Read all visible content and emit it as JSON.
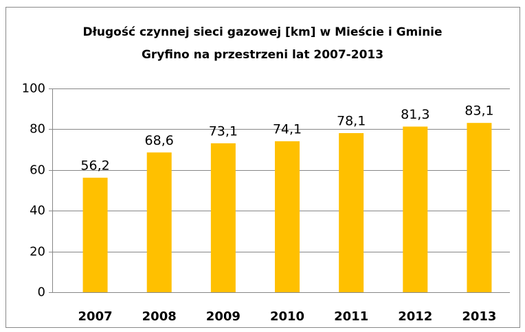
{
  "chart_data": {
    "type": "bar",
    "title": [
      "Długość czynnej sieci gazowej [km] w Mieście i Gminie",
      "Gryfino na przestrzeni lat 2007-2013"
    ],
    "categories": [
      "2007",
      "2008",
      "2009",
      "2010",
      "2011",
      "2012",
      "2013"
    ],
    "values": [
      56.2,
      68.6,
      73.1,
      74.1,
      78.1,
      81.3,
      83.1
    ],
    "value_labels": [
      "56,2",
      "68,6",
      "73,1",
      "74,1",
      "78,1",
      "81,3",
      "83,1"
    ],
    "color": "#ffc000",
    "ylim": [
      0,
      100
    ],
    "yticks": [
      0,
      20,
      40,
      60,
      80,
      100
    ],
    "grid": true
  }
}
